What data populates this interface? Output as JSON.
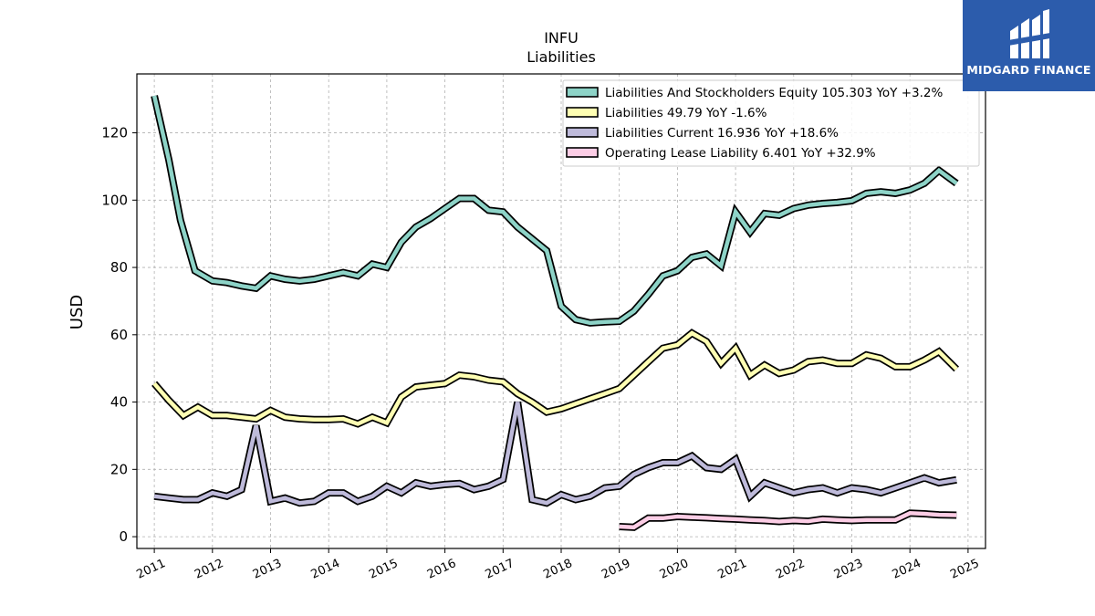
{
  "chart_data": {
    "type": "line",
    "title": "INFU",
    "subtitle": "Liabilities",
    "xlabel": "",
    "ylabel": "USD",
    "xlim": [
      2010.7,
      2025.3
    ],
    "ylim": [
      -3.5,
      137.5
    ],
    "grid": true,
    "legend_position": "top-right",
    "x_ticks": [
      "2011",
      "2012",
      "2013",
      "2014",
      "2015",
      "2016",
      "2017",
      "2018",
      "2019",
      "2020",
      "2021",
      "2022",
      "2023",
      "2024",
      "2025"
    ],
    "y_ticks": [
      "0",
      "20",
      "40",
      "60",
      "80",
      "100",
      "120"
    ],
    "series": [
      {
        "name": "Liabilities And Stockholders Equity",
        "legend": "Liabilities And Stockholders Equity  105.303 YoY +3.2%",
        "color": "#8dd3c7",
        "x": [
          2011.0,
          2011.25,
          2011.45,
          2011.7,
          2012.0,
          2012.25,
          2012.5,
          2012.75,
          2013.0,
          2013.25,
          2013.5,
          2013.75,
          2014.0,
          2014.25,
          2014.5,
          2014.75,
          2015.0,
          2015.25,
          2015.5,
          2015.75,
          2016.0,
          2016.25,
          2016.5,
          2016.75,
          2017.0,
          2017.25,
          2017.5,
          2017.75,
          2018.0,
          2018.25,
          2018.5,
          2018.75,
          2019.0,
          2019.25,
          2019.5,
          2019.75,
          2020.0,
          2020.25,
          2020.5,
          2020.75,
          2021.0,
          2021.25,
          2021.5,
          2021.75,
          2022.0,
          2022.25,
          2022.5,
          2022.75,
          2023.0,
          2023.25,
          2023.5,
          2023.75,
          2024.0,
          2024.25,
          2024.5,
          2024.8
        ],
        "y": [
          131.0,
          112.0,
          94.0,
          79.0,
          76.0,
          75.5,
          74.5,
          73.8,
          77.5,
          76.5,
          76.0,
          76.5,
          77.5,
          78.5,
          77.5,
          81.0,
          80.0,
          87.5,
          92.0,
          94.5,
          97.5,
          100.5,
          100.5,
          97.0,
          96.5,
          92.0,
          88.5,
          85.0,
          68.5,
          64.5,
          63.5,
          63.8,
          64.0,
          67.0,
          72.0,
          77.5,
          79.0,
          83.0,
          84.0,
          80.5,
          96.5,
          90.5,
          96.0,
          95.5,
          97.5,
          98.5,
          99.0,
          99.3,
          99.8,
          102.0,
          102.5,
          102.0,
          103.0,
          105.0,
          108.8,
          105.0
        ]
      },
      {
        "name": "Liabilities",
        "legend": "Liabilities  49.79 YoY -1.6%",
        "color": "#ffffb3",
        "x": [
          2011.0,
          2011.25,
          2011.5,
          2011.75,
          2012.0,
          2012.25,
          2012.5,
          2012.75,
          2013.0,
          2013.25,
          2013.5,
          2013.75,
          2014.0,
          2014.25,
          2014.5,
          2014.75,
          2015.0,
          2015.25,
          2015.5,
          2015.75,
          2016.0,
          2016.25,
          2016.5,
          2016.75,
          2017.0,
          2017.25,
          2017.5,
          2017.75,
          2018.0,
          2018.25,
          2018.5,
          2018.75,
          2019.0,
          2019.25,
          2019.5,
          2019.75,
          2020.0,
          2020.25,
          2020.5,
          2020.75,
          2021.0,
          2021.25,
          2021.5,
          2021.75,
          2022.0,
          2022.25,
          2022.5,
          2022.75,
          2023.0,
          2023.25,
          2023.5,
          2023.75,
          2024.0,
          2024.25,
          2024.5,
          2024.8
        ],
        "y": [
          45.5,
          40.5,
          36.0,
          38.5,
          36.0,
          36.0,
          35.5,
          35.0,
          37.5,
          35.5,
          35.0,
          34.8,
          34.8,
          35.0,
          33.5,
          35.5,
          33.8,
          41.5,
          44.5,
          45.0,
          45.5,
          48.0,
          47.5,
          46.5,
          46.0,
          42.5,
          40.0,
          37.0,
          38.0,
          39.5,
          41.0,
          42.5,
          44.0,
          48.0,
          52.0,
          56.0,
          57.0,
          60.5,
          58.0,
          51.5,
          56.0,
          48.0,
          51.0,
          48.5,
          49.5,
          52.0,
          52.5,
          51.5,
          51.5,
          54.0,
          53.0,
          50.5,
          50.5,
          52.5,
          55.0,
          49.8
        ]
      },
      {
        "name": "Liabilities Current",
        "legend": "Liabilities Current  16.936 YoY +18.6%",
        "color": "#bebada",
        "x": [
          2011.0,
          2011.25,
          2011.5,
          2011.75,
          2012.0,
          2012.25,
          2012.5,
          2012.75,
          2013.0,
          2013.25,
          2013.5,
          2013.75,
          2014.0,
          2014.25,
          2014.5,
          2014.75,
          2015.0,
          2015.25,
          2015.5,
          2015.75,
          2016.0,
          2016.25,
          2016.5,
          2016.75,
          2017.0,
          2017.25,
          2017.5,
          2017.75,
          2018.0,
          2018.25,
          2018.5,
          2018.75,
          2019.0,
          2019.25,
          2019.5,
          2019.75,
          2020.0,
          2020.25,
          2020.5,
          2020.75,
          2021.0,
          2021.25,
          2021.5,
          2021.75,
          2022.0,
          2022.25,
          2022.5,
          2022.75,
          2023.0,
          2023.25,
          2023.5,
          2023.75,
          2024.0,
          2024.25,
          2024.5,
          2024.8
        ],
        "y": [
          12.0,
          11.5,
          11.0,
          11.0,
          13.0,
          12.0,
          14.0,
          33.0,
          10.5,
          11.5,
          10.0,
          10.5,
          13.0,
          13.0,
          10.5,
          12.0,
          15.0,
          13.0,
          16.0,
          15.0,
          15.5,
          15.8,
          14.0,
          15.0,
          17.0,
          40.0,
          11.0,
          10.0,
          12.5,
          11.0,
          12.0,
          14.5,
          15.0,
          18.5,
          20.5,
          22.0,
          22.0,
          24.0,
          20.5,
          20.0,
          23.0,
          12.0,
          16.0,
          14.5,
          13.0,
          14.0,
          14.5,
          13.0,
          14.5,
          14.0,
          13.0,
          14.5,
          16.0,
          17.5,
          16.0,
          16.9
        ]
      },
      {
        "name": "Operating Lease Liability",
        "legend": "Operating Lease Liability  6.401 YoY +32.9%",
        "color": "#fccde5",
        "x": [
          2019.0,
          2019.25,
          2019.5,
          2019.75,
          2020.0,
          2020.25,
          2020.5,
          2020.75,
          2021.0,
          2021.25,
          2021.5,
          2021.75,
          2022.0,
          2022.25,
          2022.5,
          2022.75,
          2023.0,
          2023.25,
          2023.5,
          2023.75,
          2024.0,
          2024.25,
          2024.5,
          2024.8
        ],
        "y": [
          3.0,
          2.8,
          5.5,
          5.5,
          6.0,
          5.8,
          5.6,
          5.4,
          5.2,
          5.0,
          4.8,
          4.5,
          4.8,
          4.6,
          5.2,
          5.0,
          4.8,
          5.0,
          5.0,
          5.0,
          7.0,
          6.8,
          6.5,
          6.4
        ]
      }
    ]
  },
  "logo": {
    "text": "MIDGARD FINANCE",
    "background": "#2c5cac",
    "icon": "midgard-logo-icon"
  }
}
